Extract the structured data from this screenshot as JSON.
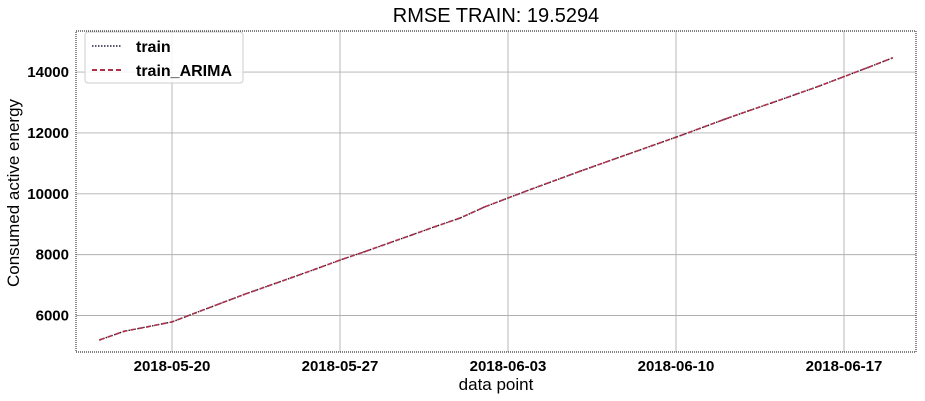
{
  "chart_data": {
    "type": "line",
    "title": "RMSE TRAIN: 19.5294",
    "xlabel": "data point",
    "ylabel": "Consumed active energy",
    "x_start": "2018-05-17",
    "x_end": "2018-06-19",
    "xlim": [
      "2018-05-16",
      "2018-06-20"
    ],
    "ylim": [
      4800,
      15350
    ],
    "x_ticks": [
      "2018-05-20",
      "2018-05-27",
      "2018-06-03",
      "2018-06-10",
      "2018-06-17"
    ],
    "y_ticks": [
      6000,
      8000,
      10000,
      12000,
      14000
    ],
    "y_tick_labels": [
      "6000",
      "8000",
      "10000",
      "12000",
      "14000"
    ],
    "grid": true,
    "legend_position": "top-left",
    "series": [
      {
        "name": "train",
        "color": "#1f1f3a",
        "style": "dotted",
        "x": [
          "2018-05-17",
          "2018-05-18",
          "2018-05-19",
          "2018-05-20",
          "2018-05-21",
          "2018-05-22",
          "2018-05-23",
          "2018-05-24",
          "2018-05-25",
          "2018-05-26",
          "2018-05-27",
          "2018-05-28",
          "2018-05-29",
          "2018-05-30",
          "2018-05-31",
          "2018-06-01",
          "2018-06-02",
          "2018-06-03",
          "2018-06-04",
          "2018-06-05",
          "2018-06-06",
          "2018-06-07",
          "2018-06-08",
          "2018-06-09",
          "2018-06-10",
          "2018-06-11",
          "2018-06-12",
          "2018-06-13",
          "2018-06-14",
          "2018-06-15",
          "2018-06-16",
          "2018-06-17",
          "2018-06-18",
          "2018-06-19"
        ],
        "values": [
          5200,
          5480,
          5630,
          5790,
          6090,
          6390,
          6690,
          6970,
          7250,
          7530,
          7820,
          8090,
          8370,
          8650,
          8930,
          9200,
          9560,
          9860,
          10160,
          10450,
          10740,
          11020,
          11300,
          11580,
          11860,
          12150,
          12440,
          12720,
          12990,
          13270,
          13550,
          13850,
          14150,
          14460
        ]
      },
      {
        "name": "train_ARIMA",
        "color": "#b0304a",
        "style": "dashed",
        "x": [
          "2018-05-17",
          "2018-05-18",
          "2018-05-19",
          "2018-05-20",
          "2018-05-21",
          "2018-05-22",
          "2018-05-23",
          "2018-05-24",
          "2018-05-25",
          "2018-05-26",
          "2018-05-27",
          "2018-05-28",
          "2018-05-29",
          "2018-05-30",
          "2018-05-31",
          "2018-06-01",
          "2018-06-02",
          "2018-06-03",
          "2018-06-04",
          "2018-06-05",
          "2018-06-06",
          "2018-06-07",
          "2018-06-08",
          "2018-06-09",
          "2018-06-10",
          "2018-06-11",
          "2018-06-12",
          "2018-06-13",
          "2018-06-14",
          "2018-06-15",
          "2018-06-16",
          "2018-06-17",
          "2018-06-18",
          "2018-06-19"
        ],
        "values": [
          5200,
          5480,
          5630,
          5790,
          6090,
          6390,
          6690,
          6970,
          7250,
          7530,
          7820,
          8090,
          8370,
          8650,
          8930,
          9200,
          9560,
          9860,
          10160,
          10450,
          10740,
          11020,
          11300,
          11580,
          11860,
          12150,
          12440,
          12720,
          12990,
          13270,
          13550,
          13850,
          14150,
          14460
        ]
      }
    ]
  }
}
